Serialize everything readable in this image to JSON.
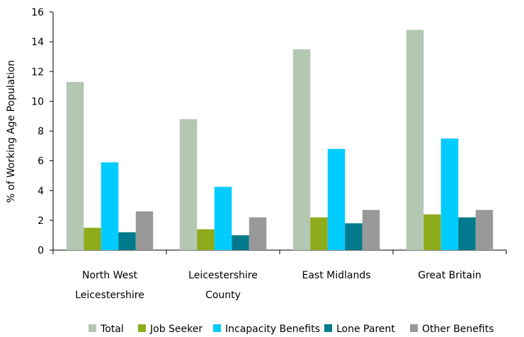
{
  "chart_data": {
    "type": "bar",
    "categories": [
      [
        "North West",
        "Leicestershire"
      ],
      [
        "Leicestershire",
        "County"
      ],
      [
        "East Midlands"
      ],
      [
        "Great Britain"
      ]
    ],
    "series": [
      {
        "name": "Total",
        "color": "#b3c7b3",
        "values": [
          11.3,
          8.8,
          13.5,
          14.8
        ]
      },
      {
        "name": "Job Seeker",
        "color": "#8dab1a",
        "values": [
          1.5,
          1.4,
          2.2,
          2.4
        ]
      },
      {
        "name": "Incapacity Benefits",
        "color": "#00ccff",
        "values": [
          5.9,
          4.25,
          6.8,
          7.5
        ]
      },
      {
        "name": "Lone Parent",
        "color": "#007a8c",
        "values": [
          1.2,
          1.0,
          1.8,
          2.2
        ]
      },
      {
        "name": "Other Benefits",
        "color": "#999999",
        "values": [
          2.6,
          2.2,
          2.7,
          2.7
        ]
      }
    ],
    "ylabel": "% of Working Age Population",
    "xlabel": "",
    "ylim": [
      0,
      16
    ],
    "yticks": [
      0,
      2,
      4,
      6,
      8,
      10,
      12,
      14,
      16
    ],
    "grid": false,
    "legend_position": "bottom"
  }
}
